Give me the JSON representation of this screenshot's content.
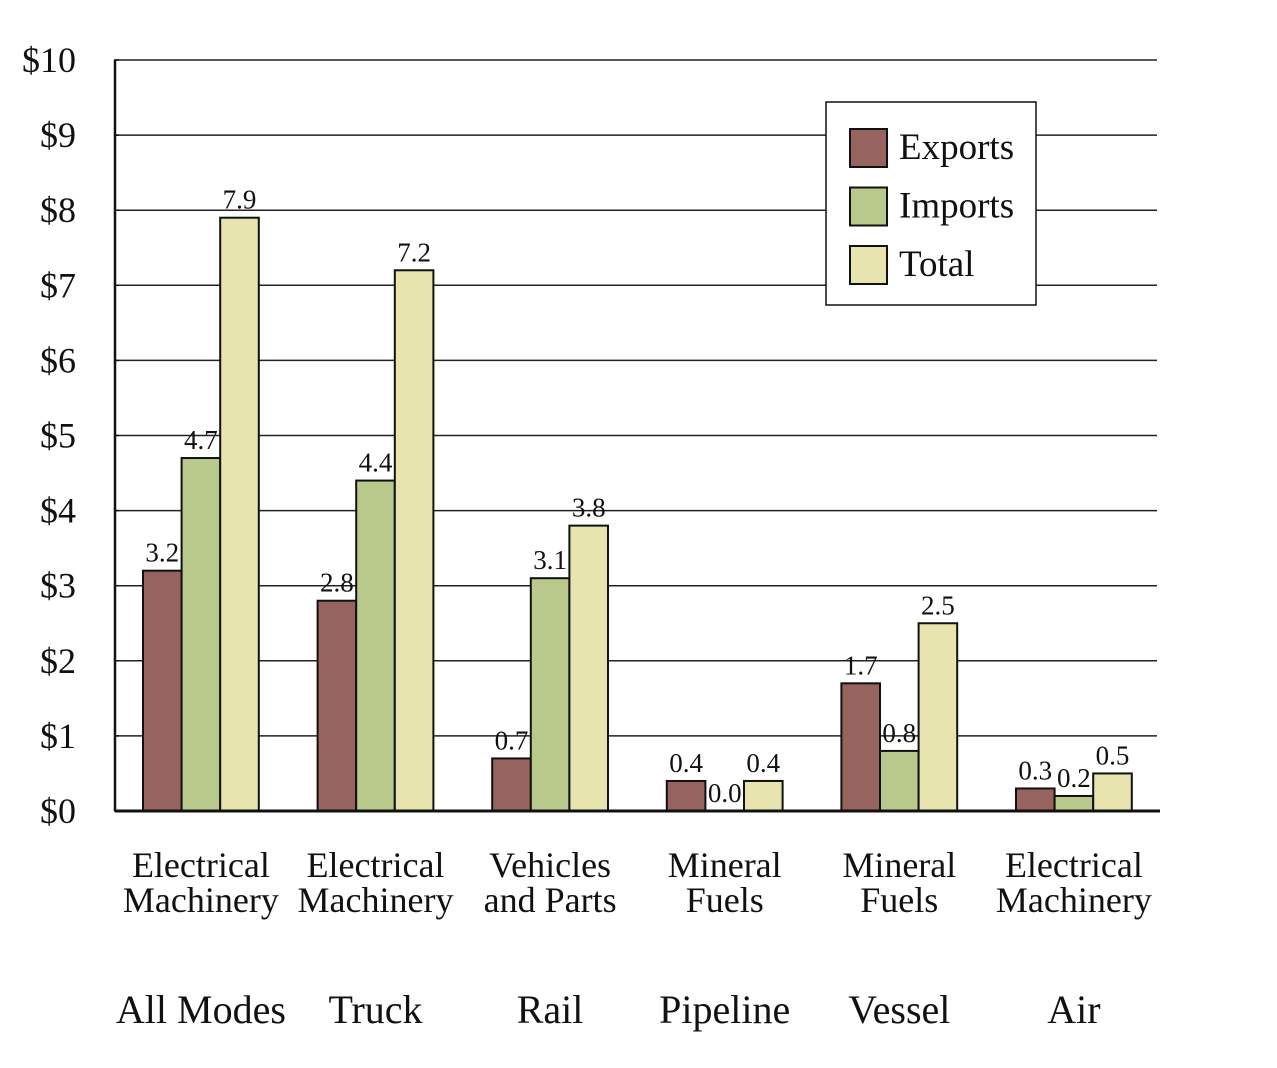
{
  "chart_data": {
    "type": "bar",
    "title": "",
    "xlabel": "",
    "ylabel": "",
    "ylim": [
      0,
      10
    ],
    "y_ticks": [
      {
        "value": 0,
        "label": "$0"
      },
      {
        "value": 1,
        "label": "$1"
      },
      {
        "value": 2,
        "label": "$2"
      },
      {
        "value": 3,
        "label": "$3"
      },
      {
        "value": 4,
        "label": "$4"
      },
      {
        "value": 5,
        "label": "$5"
      },
      {
        "value": 6,
        "label": "$6"
      },
      {
        "value": 7,
        "label": "$7"
      },
      {
        "value": 8,
        "label": "$8"
      },
      {
        "value": 9,
        "label": "$9"
      },
      {
        "value": 10,
        "label": "$10"
      }
    ],
    "grid": true,
    "legend_position": "top-right",
    "groups": [
      {
        "commodity": [
          "Electrical",
          "Machinery"
        ],
        "mode": "All Modes"
      },
      {
        "commodity": [
          "Electrical",
          "Machinery"
        ],
        "mode": "Truck"
      },
      {
        "commodity": [
          "Vehicles",
          "and Parts"
        ],
        "mode": "Rail"
      },
      {
        "commodity": [
          "Mineral",
          "Fuels"
        ],
        "mode": "Pipeline"
      },
      {
        "commodity": [
          "Mineral",
          "Fuels"
        ],
        "mode": "Vessel"
      },
      {
        "commodity": [
          "Electrical",
          "Machinery"
        ],
        "mode": "Air"
      }
    ],
    "series": [
      {
        "name": "Exports",
        "color": "#96635e",
        "values": [
          3.2,
          2.8,
          0.7,
          0.4,
          1.7,
          0.3
        ],
        "labels": [
          "3.2",
          "2.8",
          "0.7",
          "0.4",
          "1.7",
          "0.3"
        ]
      },
      {
        "name": "Imports",
        "color": "#b8c98b",
        "values": [
          4.7,
          4.4,
          3.1,
          0.0,
          0.8,
          0.2
        ],
        "labels": [
          "4.7",
          "4.4",
          "3.1",
          "0.0",
          "0.8",
          "0.2"
        ]
      },
      {
        "name": "Total",
        "color": "#e8e4b0",
        "values": [
          7.9,
          7.2,
          3.8,
          0.4,
          2.5,
          0.5
        ],
        "labels": [
          "7.9",
          "7.2",
          "3.8",
          "0.4",
          "2.5",
          "0.5"
        ]
      }
    ]
  }
}
